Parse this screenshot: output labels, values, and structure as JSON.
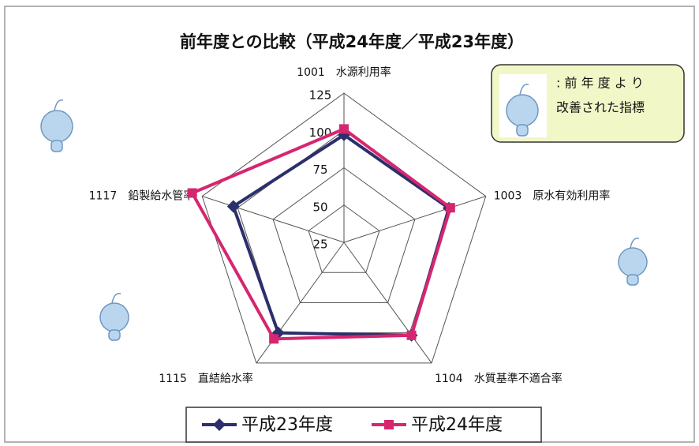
{
  "chart_data": {
    "type": "radar",
    "title": "前年度との比較（平成24年度／平成23年度）",
    "categories": [
      "1001　水源利用率",
      "1003　原水有効利用率",
      "1104　水質基準不適合率",
      "1115　直結給水率",
      "1117　鉛製給水管率"
    ],
    "series": [
      {
        "name": "平成23年度",
        "color": "#2b2f6b",
        "marker": "diamond",
        "values": [
          97,
          99,
          102,
          100,
          103
        ]
      },
      {
        "name": "平成24年度",
        "color": "#d6266f",
        "marker": "square",
        "values": [
          101,
          100,
          102,
          105,
          132
        ]
      }
    ],
    "ylim": [
      25,
      125
    ],
    "yticks": [
      25,
      50,
      75,
      100,
      125
    ],
    "grid": true,
    "annotation": [
      ": 前 年 度 よ り",
      "改善された指標"
    ]
  }
}
